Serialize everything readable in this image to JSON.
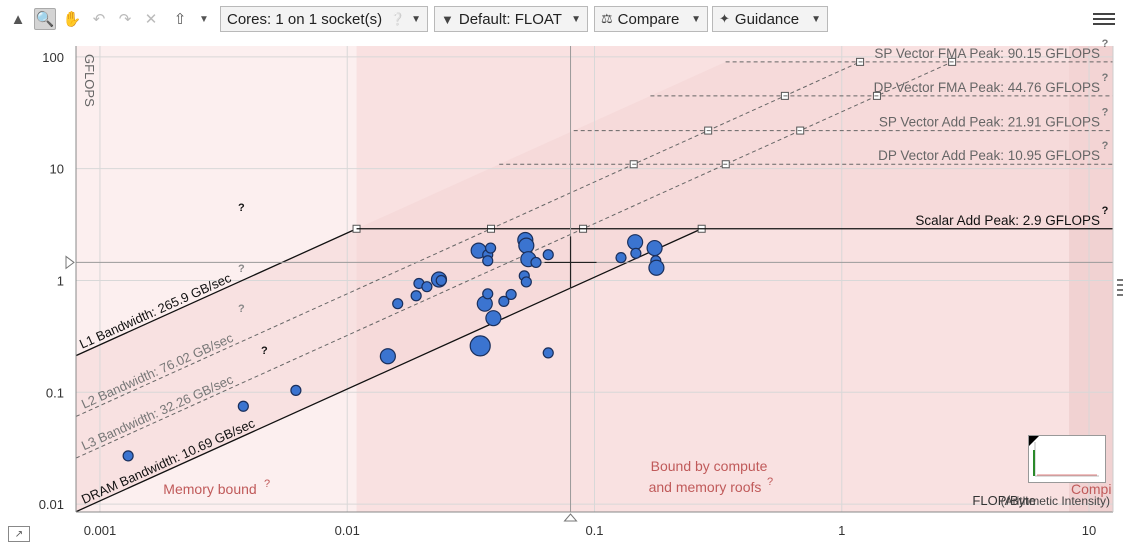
{
  "toolbar": {
    "cores_label": "Cores:  1 on 1 socket(s)",
    "precision_label": "Default: FLOAT",
    "compare_label": "Compare",
    "guidance_label": "Guidance"
  },
  "colors": {
    "point_fill": "#3b74d0",
    "point_stroke": "#1a2f5c",
    "shade": "#f6d9d9",
    "region_text": "#c05a5a"
  },
  "chart_data": {
    "type": "scatter",
    "title": "",
    "xlabel": "FLOP/Byte",
    "xlabel_note": "(Arithmetic Intensity)",
    "ylabel": "GFLOPS",
    "xscale": "log",
    "yscale": "log",
    "xlim": [
      0.0008,
      12.5
    ],
    "ylim": [
      0.0085,
      125
    ],
    "xticks": [
      {
        "value": 0.001,
        "label": "0.001"
      },
      {
        "value": 0.01,
        "label": "0.01"
      },
      {
        "value": 0.1,
        "label": "0.1"
      },
      {
        "value": 1,
        "label": "1"
      },
      {
        "value": 10,
        "label": "10"
      }
    ],
    "yticks": [
      {
        "value": 0.01,
        "label": "0.01"
      },
      {
        "value": 0.1,
        "label": "0.1"
      },
      {
        "value": 1,
        "label": "1"
      },
      {
        "value": 10,
        "label": "10"
      },
      {
        "value": 100,
        "label": "100"
      }
    ],
    "grid": true,
    "bandwidth_roofs": [
      {
        "name": "L1 Bandwidth",
        "label": "L1 Bandwidth: 265.9 GB/sec",
        "gbps": 265.9,
        "style": "solid"
      },
      {
        "name": "L2 Bandwidth",
        "label": "L2 Bandwidth: 76.02 GB/sec",
        "gbps": 76.02,
        "style": "dashed"
      },
      {
        "name": "L3 Bandwidth",
        "label": "L3 Bandwidth: 32.26 GB/sec",
        "gbps": 32.26,
        "style": "dashed"
      },
      {
        "name": "DRAM Bandwidth",
        "label": "DRAM Bandwidth: 10.69 GB/sec",
        "gbps": 10.69,
        "style": "solid"
      }
    ],
    "compute_roofs": [
      {
        "name": "SP Vector FMA Peak",
        "label": "SP Vector FMA Peak: 90.15 GFLOPS",
        "gflops": 90.15,
        "style": "dashed"
      },
      {
        "name": "DP Vector FMA Peak",
        "label": "DP Vector FMA Peak: 44.76 GFLOPS",
        "gflops": 44.76,
        "style": "dashed"
      },
      {
        "name": "SP Vector Add Peak",
        "label": "SP Vector Add Peak: 21.91 GFLOPS",
        "gflops": 21.91,
        "style": "dashed"
      },
      {
        "name": "DP Vector Add Peak",
        "label": "DP Vector Add Peak: 10.95 GFLOPS",
        "gflops": 10.95,
        "style": "dashed"
      },
      {
        "name": "Scalar Add Peak",
        "label": "Scalar Add Peak: 2.9 GFLOPS",
        "gflops": 2.9,
        "style": "solid"
      }
    ],
    "regions": [
      {
        "label": "Memory bound",
        "lines": [
          "Memory bound"
        ]
      },
      {
        "label": "Bound by compute and memory roofs",
        "lines": [
          "Bound by compute",
          "and memory roofs"
        ]
      },
      {
        "label": "Compute bound",
        "lines": [
          "Compi"
        ]
      }
    ],
    "crosshair": {
      "x": 0.08,
      "y": 1.45
    },
    "points": [
      {
        "x": 0.0013,
        "y": 0.027,
        "size": "s"
      },
      {
        "x": 0.0038,
        "y": 0.075,
        "size": "s"
      },
      {
        "x": 0.0062,
        "y": 0.104,
        "size": "s"
      },
      {
        "x": 0.0146,
        "y": 0.21,
        "size": "m"
      },
      {
        "x": 0.016,
        "y": 0.62,
        "size": "s"
      },
      {
        "x": 0.019,
        "y": 0.73,
        "size": "s"
      },
      {
        "x": 0.0195,
        "y": 0.94,
        "size": "s"
      },
      {
        "x": 0.021,
        "y": 0.88,
        "size": "s"
      },
      {
        "x": 0.0235,
        "y": 1.02,
        "size": "m"
      },
      {
        "x": 0.024,
        "y": 1.0,
        "size": "s"
      },
      {
        "x": 0.0345,
        "y": 0.26,
        "size": "l"
      },
      {
        "x": 0.034,
        "y": 1.85,
        "size": "m"
      },
      {
        "x": 0.037,
        "y": 1.7,
        "size": "s"
      },
      {
        "x": 0.037,
        "y": 1.5,
        "size": "s"
      },
      {
        "x": 0.038,
        "y": 1.95,
        "size": "s"
      },
      {
        "x": 0.036,
        "y": 0.62,
        "size": "m"
      },
      {
        "x": 0.037,
        "y": 0.76,
        "size": "s"
      },
      {
        "x": 0.039,
        "y": 0.46,
        "size": "m"
      },
      {
        "x": 0.043,
        "y": 0.65,
        "size": "s"
      },
      {
        "x": 0.046,
        "y": 0.75,
        "size": "s"
      },
      {
        "x": 0.0525,
        "y": 2.3,
        "size": "m"
      },
      {
        "x": 0.053,
        "y": 2.05,
        "size": "m"
      },
      {
        "x": 0.054,
        "y": 1.55,
        "size": "m"
      },
      {
        "x": 0.052,
        "y": 1.1,
        "size": "s"
      },
      {
        "x": 0.053,
        "y": 0.97,
        "size": "s"
      },
      {
        "x": 0.058,
        "y": 1.45,
        "size": "s"
      },
      {
        "x": 0.065,
        "y": 1.7,
        "size": "s"
      },
      {
        "x": 0.065,
        "y": 0.225,
        "size": "s"
      },
      {
        "x": 0.128,
        "y": 1.6,
        "size": "s"
      },
      {
        "x": 0.146,
        "y": 2.2,
        "size": "m"
      },
      {
        "x": 0.147,
        "y": 1.75,
        "size": "s"
      },
      {
        "x": 0.175,
        "y": 1.95,
        "size": "m"
      },
      {
        "x": 0.177,
        "y": 1.5,
        "size": "s"
      },
      {
        "x": 0.178,
        "y": 1.3,
        "size": "m"
      }
    ]
  }
}
